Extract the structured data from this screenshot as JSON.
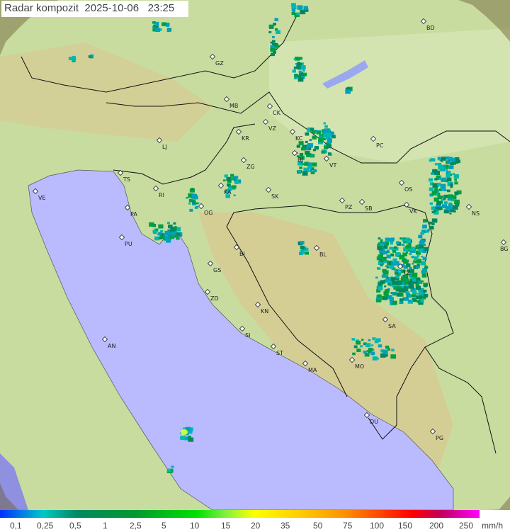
{
  "header": {
    "title": "Radar kompozit",
    "date": "2025-10-06",
    "time": "23:25"
  },
  "legend": {
    "ticks": [
      "0,1",
      "0,25",
      "0,5",
      "1",
      "2,5",
      "5",
      "10",
      "15",
      "20",
      "35",
      "50",
      "75",
      "100",
      "150",
      "200",
      "250"
    ],
    "unit": "mm/h"
  },
  "colors": {
    "sea": "#babaff",
    "land": "#c8dca0",
    "echo_light": "#00a0c0",
    "echo_mid": "#00a040",
    "echo_core": "#00e000"
  },
  "cities": [
    {
      "code": "GZ"
    },
    {
      "code": "BD"
    },
    {
      "code": "MB"
    },
    {
      "code": "CK"
    },
    {
      "code": "VZ"
    },
    {
      "code": "KR"
    },
    {
      "code": "KC"
    },
    {
      "code": "LJ"
    },
    {
      "code": "BJ"
    },
    {
      "code": "VT"
    },
    {
      "code": "PC"
    },
    {
      "code": "ZG"
    },
    {
      "code": "TS"
    },
    {
      "code": "VE"
    },
    {
      "code": "RI"
    },
    {
      "code": "KA"
    },
    {
      "code": "SK"
    },
    {
      "code": "OS"
    },
    {
      "code": "PZ"
    },
    {
      "code": "SB"
    },
    {
      "code": "VK"
    },
    {
      "code": "NS"
    },
    {
      "code": "PA"
    },
    {
      "code": "OG"
    },
    {
      "code": "PU"
    },
    {
      "code": "BI"
    },
    {
      "code": "BL"
    },
    {
      "code": "BG"
    },
    {
      "code": "TZ"
    },
    {
      "code": "GS"
    },
    {
      "code": "ZD"
    },
    {
      "code": "KN"
    },
    {
      "code": "SA"
    },
    {
      "code": "AN"
    },
    {
      "code": "SI"
    },
    {
      "code": "ST"
    },
    {
      "code": "MA"
    },
    {
      "code": "MO"
    },
    {
      "code": "DU"
    },
    {
      "code": "PG"
    }
  ]
}
